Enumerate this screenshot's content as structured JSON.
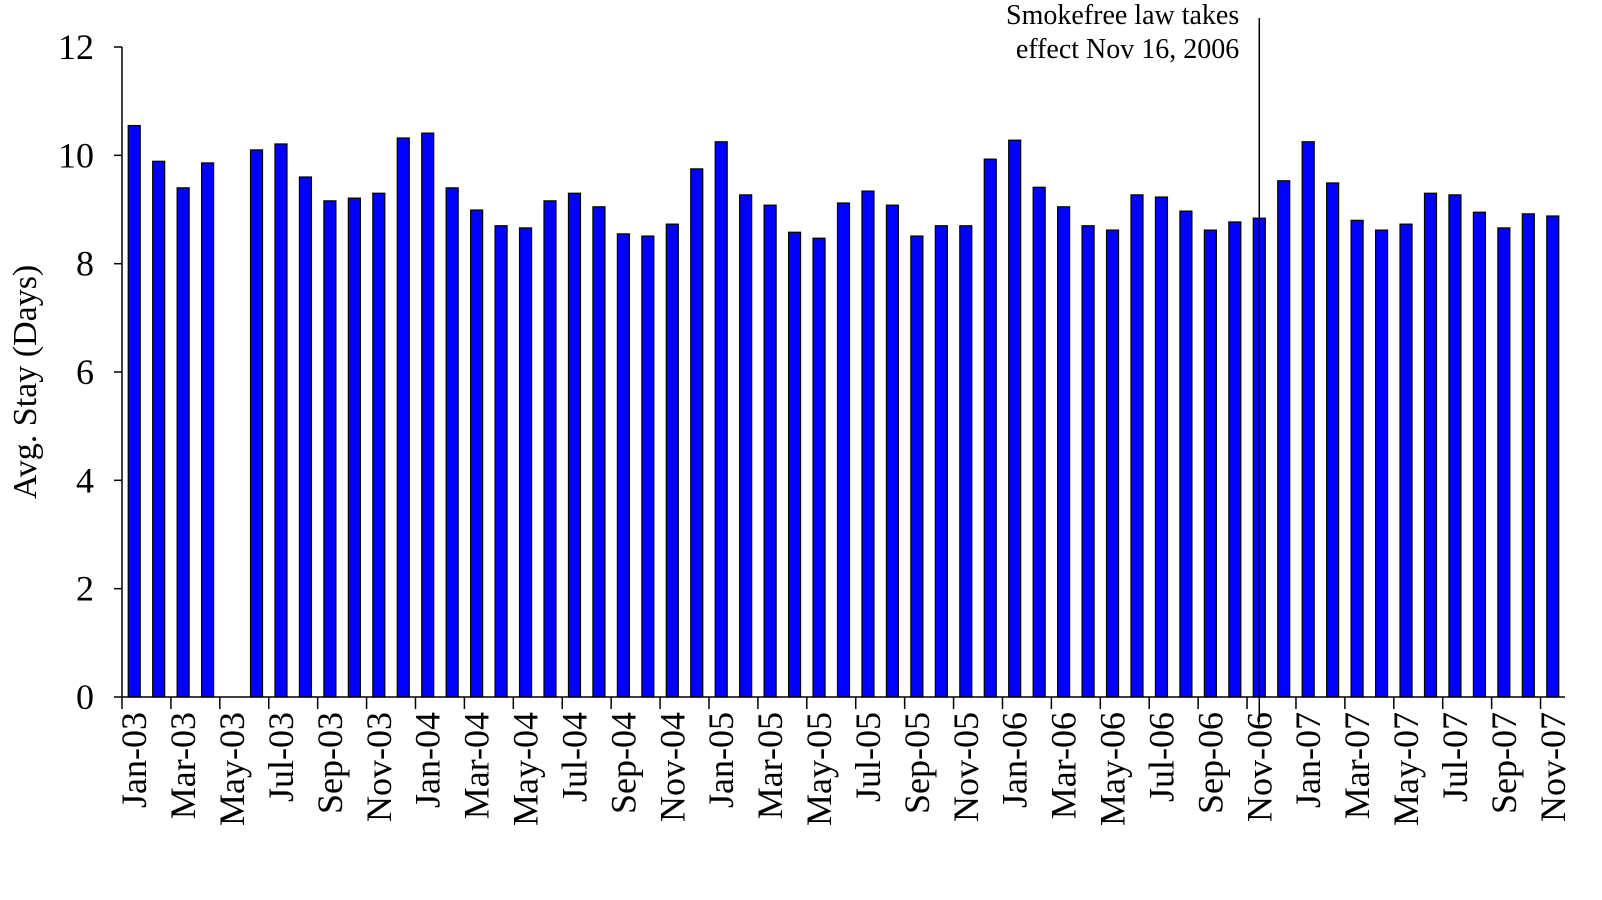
{
  "chart_data": {
    "type": "bar",
    "y_label": "Avg. Stay (Days)",
    "annotation": [
      "Smokefree law takes",
      "effect Nov 16, 2006"
    ],
    "categories": [
      "Jan-03",
      null,
      "Mar-03",
      null,
      "May-03",
      null,
      "Jul-03",
      null,
      "Sep-03",
      null,
      "Nov-03",
      null,
      "Jan-04",
      null,
      "Mar-04",
      null,
      "May-04",
      null,
      "Jul-04",
      null,
      "Sep-04",
      null,
      "Nov-04",
      null,
      "Jan-05",
      null,
      "Mar-05",
      null,
      "May-05",
      null,
      "Jul-05",
      null,
      "Sep-05",
      null,
      "Nov-05",
      null,
      "Jan-06",
      null,
      "Mar-06",
      null,
      "May-06",
      null,
      "Jul-06",
      null,
      "Sep-06",
      null,
      "Nov-06",
      null,
      "Jan-07",
      null,
      "Mar-07",
      null,
      "May-07",
      null,
      "Jul-07",
      null,
      "Sep-07",
      null,
      "Nov-07"
    ],
    "values": [
      10.55,
      9.89,
      9.4,
      9.86,
      null,
      10.1,
      10.21,
      9.6,
      9.16,
      9.21,
      9.3,
      10.32,
      10.41,
      9.4,
      8.99,
      8.7,
      8.66,
      9.16,
      9.3,
      9.05,
      8.55,
      8.51,
      8.73,
      9.75,
      10.25,
      9.27,
      9.08,
      8.58,
      8.47,
      9.12,
      9.34,
      9.08,
      8.51,
      8.7,
      8.7,
      9.93,
      10.28,
      9.41,
      9.05,
      8.7,
      8.62,
      9.27,
      9.23,
      8.97,
      8.62,
      8.77,
      8.84,
      9.53,
      10.25,
      9.49,
      8.8,
      8.62,
      8.73,
      9.3,
      9.27,
      8.95,
      8.66,
      8.92,
      8.88
    ],
    "color": "#0000ff",
    "ylim": [
      0,
      12
    ],
    "yticks": [
      0,
      2,
      4,
      6,
      8,
      10,
      12
    ]
  }
}
